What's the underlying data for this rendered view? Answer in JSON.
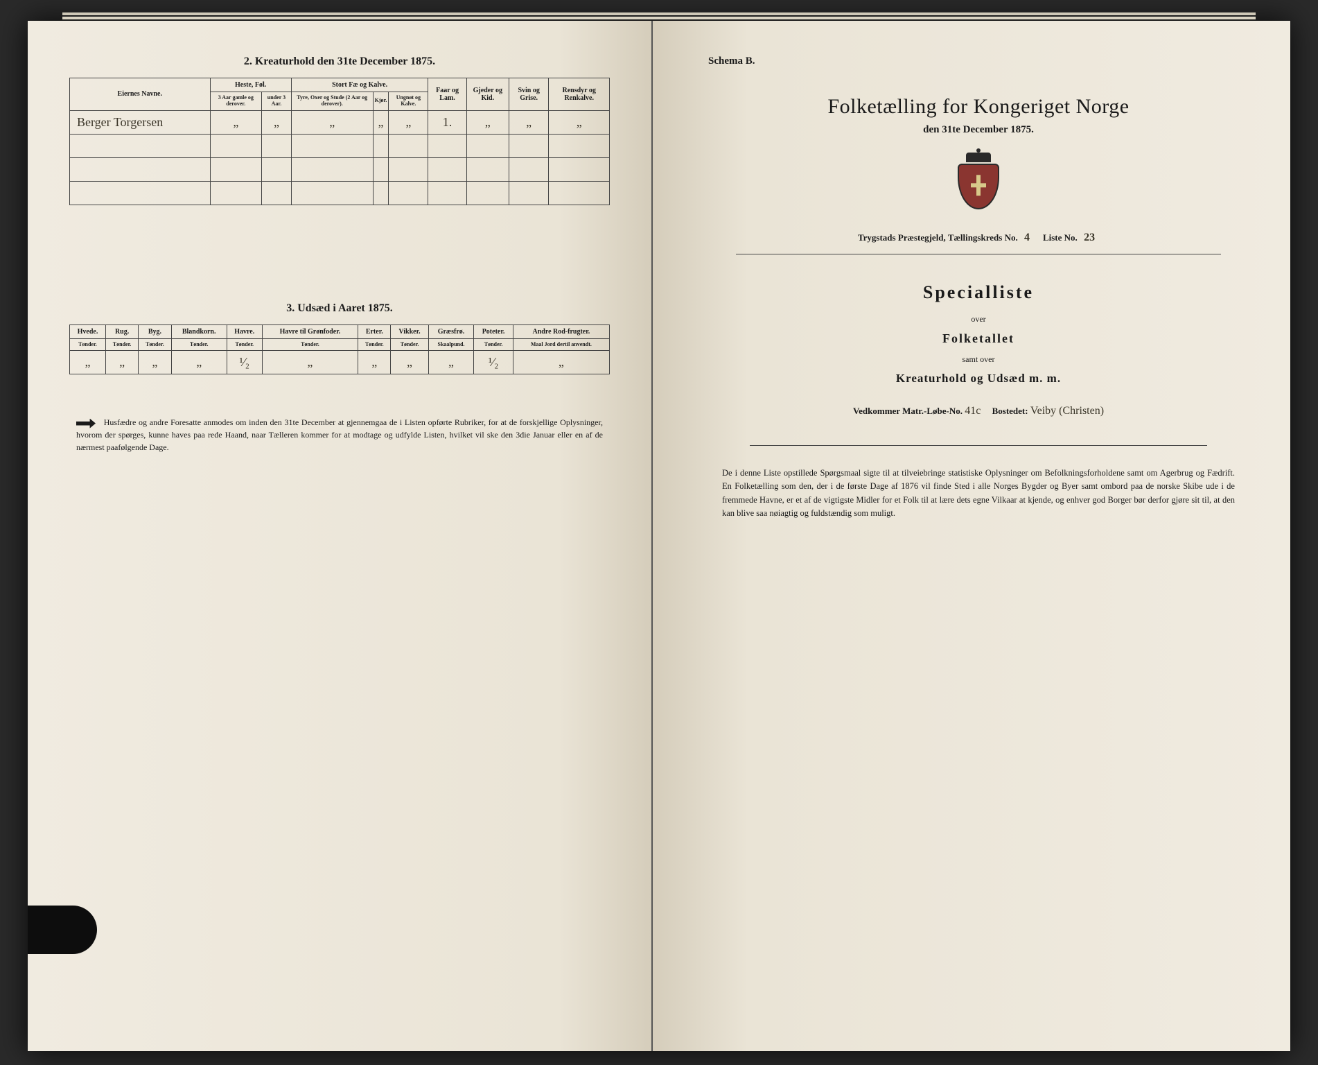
{
  "left": {
    "table2": {
      "title": "2. Kreaturhold den 31te December 1875.",
      "headers": {
        "owner": "Eiernes Navne.",
        "group_horse": "Heste, Føl.",
        "group_cattle": "Stort Fæ og Kalve.",
        "sheep": "Faar og Lam.",
        "goats": "Gjeder og Kid.",
        "pigs": "Svin og Grise.",
        "reindeer": "Rensdyr og Renkalve.",
        "horse_a": "3 Aar gamle og derover.",
        "horse_b": "under 3 Aar.",
        "cattle_a": "Tyre, Oxer og Stude (2 Aar og derover).",
        "cattle_b": "Kjør.",
        "cattle_c": "Ungnøt og Kalve."
      },
      "row": {
        "owner": "Berger Torgersen",
        "horse_a": "„",
        "horse_b": "„",
        "cattle_a": "„",
        "cattle_b": "„",
        "cattle_c": "„",
        "sheep": "1.",
        "goats": "„",
        "pigs": "„",
        "reindeer": "„"
      }
    },
    "table3": {
      "title": "3. Udsæd i Aaret 1875.",
      "cols": [
        "Hvede.",
        "Rug.",
        "Byg.",
        "Blandkorn.",
        "Havre.",
        "Havre til Grønfoder.",
        "Erter.",
        "Vikker.",
        "Græsfrø.",
        "Poteter.",
        "Andre Rod-frugter."
      ],
      "units": [
        "Tønder.",
        "Tønder.",
        "Tønder.",
        "Tønder.",
        "Tønder.",
        "Tønder.",
        "Tønder.",
        "Tønder.",
        "Skaalpund.",
        "Tønder.",
        "Maal Jord dertil anvendt."
      ],
      "row": [
        "„",
        "„",
        "„",
        "„",
        "¹⁄₂",
        "„",
        "„",
        "„",
        "„",
        "¹⁄₂",
        "„"
      ]
    },
    "footnote": "Husfædre og andre Foresatte anmodes om inden den 31te December at gjennemgaa de i Listen opførte Rubriker, for at de forskjellige Oplysninger, hvorom der spørges, kunne haves paa rede Haand, naar Tælleren kommer for at modtage og udfylde Listen, hvilket vil ske den 3die Januar eller en af de nærmest paafølgende Dage."
  },
  "right": {
    "schema": "Schema B.",
    "title": "Folketælling for Kongeriget Norge",
    "subtitle": "den 31te December 1875.",
    "meta": {
      "parish_label": "Trygstads Præstegjeld,",
      "kreds_label": "Tællingskreds No.",
      "kreds": "4",
      "liste_label": "Liste No.",
      "liste": "23"
    },
    "spec_title": "Specialliste",
    "over": "over",
    "line2": "Folketallet",
    "samt": "samt over",
    "line3": "Kreaturhold og Udsæd m. m.",
    "vedk_label1": "Vedkommer Matr.-Løbe-No.",
    "vedk_val1": "41c",
    "vedk_label2": "Bostedet:",
    "vedk_val2": "Veiby (Christen)",
    "bottom": "De i denne Liste opstillede Spørgsmaal sigte til at tilveiebringe statistiske Oplysninger om Befolkningsforholdene samt om Agerbrug og Fædrift. En Folketælling som den, der i de første Dage af 1876 vil finde Sted i alle Norges Bygder og Byer samt ombord paa de norske Skibe ude i de fremmede Havne, er et af de vigtigste Midler for et Folk til at lære dets egne Vilkaar at kjende, og enhver god Borger bør derfor gjøre sit til, at den kan blive saa nøiagtig og fuldstændig som muligt."
  }
}
